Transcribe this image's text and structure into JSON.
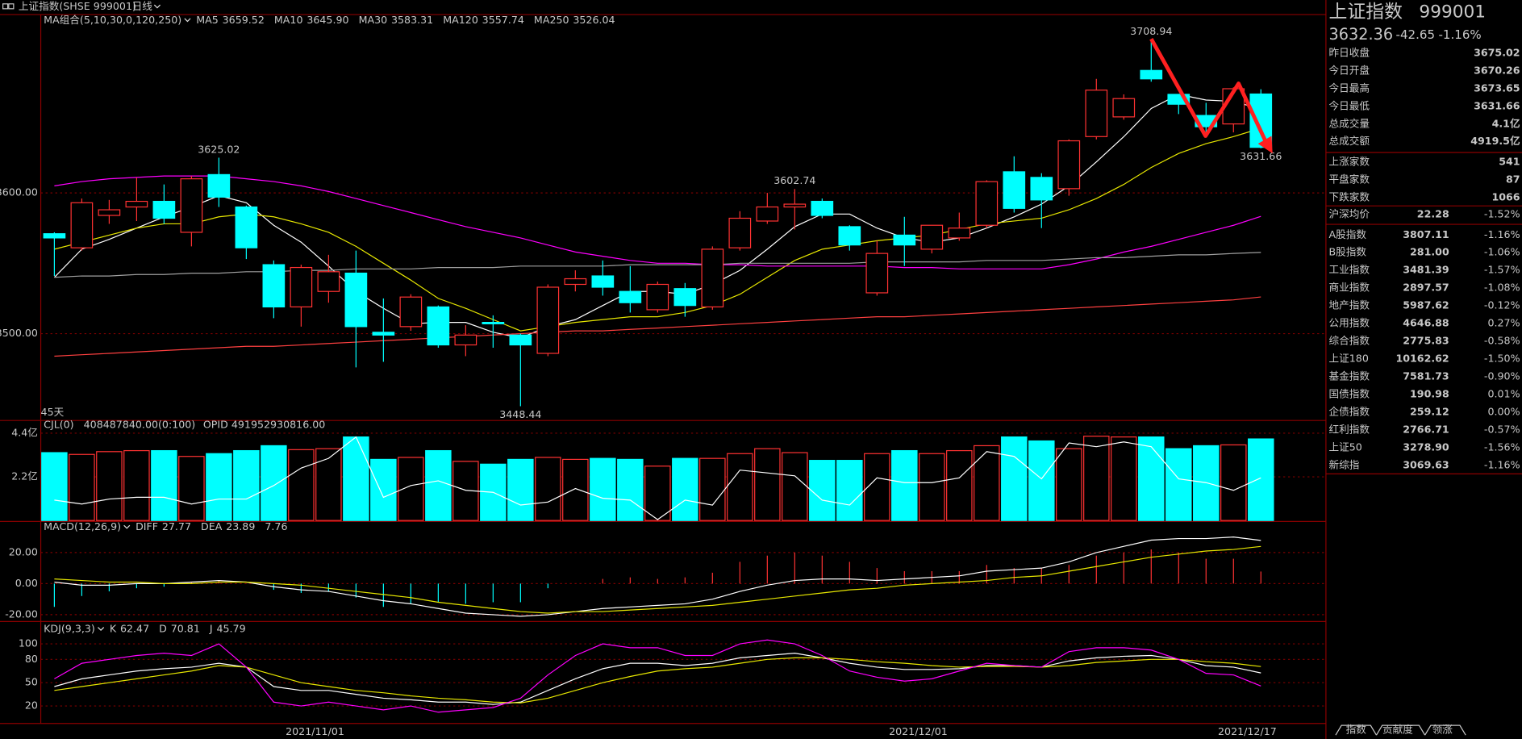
{
  "header": {
    "title": "上证指数(SHSE 999001)",
    "period": "日线"
  },
  "chart_data": [
    {
      "type": "candlestick",
      "legend_title": "MA组合(5,10,30,0,120,250)",
      "period_label": "45天",
      "categories": [
        null,
        null,
        null,
        null,
        null,
        null,
        null,
        null,
        null,
        null,
        "2021/11/01",
        null,
        null,
        null,
        null,
        null,
        null,
        null,
        null,
        null,
        null,
        null,
        null,
        null,
        null,
        null,
        null,
        null,
        null,
        null,
        null,
        null,
        "2021/12/01",
        null,
        null,
        null,
        null,
        null,
        null,
        null,
        null,
        null,
        null,
        null,
        "2021/12/17"
      ],
      "open": [
        3571,
        3561,
        3584,
        3590,
        3594,
        3572,
        3613,
        3590,
        3549,
        3519,
        3530,
        3543,
        3501,
        3505,
        3519,
        3492,
        3508,
        3499,
        3486,
        3535,
        3541,
        3530,
        3517,
        3532,
        3519,
        3561,
        3580,
        3590,
        3594,
        3576,
        3529,
        3570,
        3560,
        3568,
        3577,
        3615,
        3611,
        3603,
        3640,
        3654,
        3687,
        3670,
        3655,
        3649,
        3670.26
      ],
      "high": [
        3572,
        3596,
        3595,
        3611,
        3606,
        3612,
        3625.02,
        3591,
        3552,
        3549,
        3556,
        3559,
        3525,
        3528,
        3520,
        3506,
        3513,
        3500,
        3535,
        3545,
        3552,
        3548,
        3537,
        3536,
        3562,
        3587,
        3600,
        3602.74,
        3596,
        3577,
        3566,
        3583,
        3577,
        3586,
        3609,
        3626,
        3614,
        3638,
        3681,
        3670,
        3708.94,
        3670,
        3664,
        3675,
        3673.65
      ],
      "low": [
        3541,
        3559,
        3578,
        3580,
        3578,
        3562,
        3590,
        3553,
        3511,
        3505,
        3522,
        3476,
        3480,
        3502,
        3490,
        3484,
        3490,
        3448.44,
        3484,
        3530,
        3527,
        3515,
        3515,
        3512,
        3517,
        3559,
        3578,
        3574,
        3582,
        3559,
        3527,
        3548,
        3557,
        3566,
        3575,
        3586,
        3575,
        3598,
        3638,
        3652,
        3679,
        3656,
        3643,
        3643,
        3631.66
      ],
      "close": [
        3568,
        3593,
        3588,
        3594,
        3582,
        3610,
        3597,
        3561,
        3519,
        3547,
        3544,
        3505,
        3499,
        3526,
        3492,
        3499,
        3507,
        3492,
        3533,
        3539,
        3533,
        3522,
        3535,
        3520,
        3560,
        3582,
        3590,
        3592,
        3584,
        3563,
        3557,
        3563,
        3577,
        3575,
        3608,
        3589,
        3595,
        3637,
        3673,
        3667,
        3681,
        3663,
        3647,
        3674,
        3632.36
      ],
      "up_color": "#ff3232",
      "down_color": "#00ffff",
      "ylim": [
        3439,
        3726
      ],
      "yticks": [
        {
          "value": 3500,
          "label": "3500.00"
        },
        {
          "value": 3600,
          "label": "3600.00"
        }
      ],
      "grid": true,
      "series": [
        {
          "name": "MA5",
          "color": "#ffffff",
          "values": [
            3540,
            3560,
            3567,
            3575,
            3583,
            3590,
            3598,
            3593,
            3577,
            3565,
            3548,
            3530,
            3518,
            3507,
            3508,
            3508,
            3501,
            3497,
            3505,
            3510,
            3520,
            3530,
            3530,
            3528,
            3535,
            3545,
            3560,
            3576,
            3585,
            3585,
            3575,
            3568,
            3565,
            3568,
            3575,
            3583,
            3592,
            3605,
            3622,
            3640,
            3660,
            3670,
            3666,
            3665,
            3659.52
          ]
        },
        {
          "name": "MA10",
          "color": "#e6e600",
          "values": [
            3560,
            3565,
            3570,
            3575,
            3578,
            3578,
            3583,
            3585,
            3583,
            3578,
            3572,
            3562,
            3550,
            3538,
            3525,
            3518,
            3510,
            3502,
            3505,
            3508,
            3510,
            3512,
            3512,
            3515,
            3520,
            3528,
            3540,
            3552,
            3560,
            3563,
            3566,
            3568,
            3570,
            3574,
            3578,
            3580,
            3582,
            3588,
            3596,
            3606,
            3618,
            3628,
            3635,
            3640,
            3645.9
          ],
          "value_labels": [
            null,
            null,
            null,
            null,
            null,
            null,
            null,
            null,
            null,
            null,
            null,
            null,
            null,
            null,
            null,
            null,
            null,
            null,
            null,
            null,
            null,
            null,
            null,
            null,
            null,
            null,
            null,
            null,
            null,
            null,
            null,
            null,
            null,
            null,
            null,
            null,
            null,
            null,
            null,
            null,
            null,
            null,
            null,
            null,
            "3645.90"
          ]
        },
        {
          "name": "MA30",
          "color": "#ff00ff",
          "values": [
            3605,
            3608,
            3610,
            3611,
            3612,
            3612,
            3612,
            3610,
            3608,
            3605,
            3601,
            3596,
            3591,
            3586,
            3581,
            3576,
            3572,
            3568,
            3563,
            3558,
            3555,
            3552,
            3550,
            3550,
            3549,
            3549,
            3548,
            3548,
            3548,
            3548,
            3548,
            3547,
            3547,
            3546,
            3546,
            3546,
            3546,
            3549,
            3553,
            3558,
            3562,
            3567,
            3572,
            3577,
            3583.31
          ]
        },
        {
          "name": "MA120",
          "color": "#a0a0a0",
          "values": [
            3540,
            3541,
            3541,
            3542,
            3542,
            3543,
            3543,
            3544,
            3544,
            3545,
            3545,
            3546,
            3546,
            3546,
            3547,
            3547,
            3547,
            3548,
            3548,
            3548,
            3548,
            3549,
            3549,
            3549,
            3549,
            3550,
            3550,
            3550,
            3550,
            3550,
            3551,
            3551,
            3551,
            3551,
            3552,
            3552,
            3552,
            3553,
            3554,
            3554,
            3555,
            3556,
            3556,
            3557,
            3557.74
          ]
        },
        {
          "name": "MA250",
          "color": "#ff4040",
          "values": [
            3484,
            3485,
            3486,
            3487,
            3488,
            3489,
            3490,
            3491,
            3491,
            3492,
            3493,
            3494,
            3495,
            3496,
            3497,
            3498,
            3499,
            3500,
            3501,
            3502,
            3502,
            3503,
            3504,
            3505,
            3506,
            3507,
            3508,
            3509,
            3510,
            3511,
            3512,
            3512,
            3513,
            3514,
            3515,
            3516,
            3517,
            3518,
            3519,
            3520,
            3521,
            3522,
            3523,
            3524,
            3526.04
          ]
        }
      ]
    },
    {
      "type": "bar",
      "title": "CJL(0)",
      "stats": [
        "408487840.00(0:100)",
        "OPID 491952930816.00"
      ],
      "ylim": [
        0,
        5.04
      ],
      "yticks": [
        {
          "value": 2.2,
          "label": "2.2亿"
        },
        {
          "value": 4.4,
          "label": "4.4亿"
        }
      ],
      "grid": true,
      "series": [
        {
          "color": "#00ffff",
          "values": [
            3.42,
            3.33,
            3.47,
            3.52,
            3.52,
            3.23,
            3.37,
            3.52,
            3.77,
            3.57,
            3.62,
            4.21,
            3.08,
            3.18,
            3.52,
            2.98,
            2.84,
            3.08,
            3.18,
            3.08,
            3.13,
            3.08,
            2.74,
            3.13,
            3.13,
            3.37,
            3.62,
            3.42,
            3.03,
            3.03,
            3.37,
            3.52,
            3.37,
            3.52,
            3.77,
            4.21,
            4.01,
            3.62,
            4.25,
            4.21,
            4.21,
            3.62,
            3.77,
            3.81,
            4.11
          ]
        },
        {
          "color": "#ffffff",
          "values": [
            1.03,
            0.83,
            1.08,
            1.17,
            1.17,
            0.83,
            1.08,
            1.08,
            1.76,
            2.64,
            3.13,
            4.21,
            1.17,
            1.76,
            2,
            1.52,
            1.42,
            0.78,
            0.93,
            1.61,
            1.12,
            1.03,
            0.05,
            1.03,
            0.78,
            2.54,
            2.4,
            2.25,
            1.03,
            0.78,
            2.15,
            1.91,
            1.91,
            2.15,
            3.47,
            3.23,
            2.1,
            3.91,
            3.72,
            3.96,
            3.72,
            2.1,
            1.91,
            1.52,
            2.15
          ]
        }
      ]
    },
    {
      "type": "macd",
      "title": "MACD(12,26,9)",
      "ylim": [
        -24.4,
        38.1
      ],
      "yticks": [
        {
          "value": -20,
          "label": "-20.00"
        },
        {
          "value": 0,
          "label": "0.00"
        },
        {
          "value": 20,
          "label": "20.00"
        }
      ],
      "grid": true,
      "series": [
        {
          "name": "DIFF",
          "color": "#ffffff",
          "values": [
            1,
            -1,
            -1,
            0,
            0,
            1,
            2,
            1,
            -2,
            -4,
            -5,
            -8,
            -11,
            -13,
            -16,
            -19,
            -20,
            -21,
            -20,
            -18,
            -16,
            -15,
            -14,
            -13,
            -10,
            -5,
            -1,
            2,
            3,
            3,
            2,
            3,
            4,
            5,
            8,
            9,
            10,
            14,
            20,
            24,
            28,
            29,
            29,
            30,
            27.77
          ]
        },
        {
          "name": "DEA",
          "color": "#e6e600",
          "values": [
            3,
            2,
            1,
            1,
            0,
            0,
            1,
            1,
            0,
            -1,
            -3,
            -5,
            -7,
            -9,
            -12,
            -14,
            -16,
            -18,
            -19,
            -18,
            -18,
            -17,
            -16,
            -15,
            -14,
            -12,
            -10,
            -8,
            -6,
            -4,
            -3,
            -1,
            0,
            1,
            2,
            4,
            5,
            8,
            11,
            14,
            17,
            19,
            21,
            22,
            23.89
          ]
        },
        {
          "color": "#00ffff",
          "values": [
            -15,
            -8,
            -5,
            -3,
            -2,
            1,
            2,
            0,
            -4,
            -6,
            -5,
            -9,
            -15,
            -13,
            -12,
            -13,
            -12,
            -12,
            -3,
            0,
            3,
            4,
            3,
            4,
            7,
            14,
            18,
            20,
            18,
            14,
            10,
            8,
            8,
            8,
            12,
            10,
            10,
            12,
            18,
            20,
            22,
            20,
            16,
            16,
            7.76
          ]
        }
      ]
    },
    {
      "type": "line",
      "title": "KDJ(9,3,3)",
      "ylim": [
        -2.5,
        125
      ],
      "yticks": [
        20,
        50,
        80,
        100
      ],
      "grid": true,
      "series": [
        {
          "name": "K",
          "color": "#ffffff",
          "values": [
            45,
            55,
            60,
            65,
            68,
            70,
            75,
            70,
            45,
            40,
            40,
            35,
            30,
            28,
            25,
            25,
            22,
            25,
            40,
            55,
            68,
            75,
            75,
            72,
            75,
            82,
            85,
            88,
            82,
            75,
            70,
            67,
            67,
            68,
            72,
            72,
            70,
            78,
            82,
            84,
            85,
            80,
            72,
            70,
            62.47
          ]
        },
        {
          "name": "D",
          "color": "#e6e600",
          "values": [
            40,
            45,
            50,
            55,
            60,
            65,
            72,
            70,
            60,
            50,
            45,
            40,
            37,
            33,
            30,
            28,
            25,
            24,
            30,
            40,
            50,
            58,
            65,
            68,
            70,
            75,
            80,
            82,
            82,
            80,
            77,
            75,
            72,
            70,
            71,
            71,
            70,
            72,
            76,
            78,
            80,
            80,
            77,
            75,
            70.81
          ]
        },
        {
          "name": "J",
          "color": "#ff00ff",
          "values": [
            55,
            75,
            80,
            85,
            88,
            85,
            100,
            70,
            25,
            20,
            25,
            20,
            15,
            20,
            12,
            15,
            18,
            30,
            60,
            85,
            100,
            95,
            95,
            85,
            85,
            100,
            105,
            100,
            85,
            65,
            57,
            52,
            55,
            65,
            75,
            72,
            70,
            90,
            95,
            95,
            92,
            80,
            62,
            60,
            45.79
          ]
        }
      ]
    }
  ],
  "quote": {
    "name": "上证指数",
    "code": "999001",
    "price": "3632.36",
    "change": "-42.65",
    "change_pct": "-1.16%",
    "summary": [
      {
        "label": "昨日收盘",
        "value": "3675.02",
        "color": "#ffffff"
      },
      {
        "label": "今日开盘",
        "value": "3670.26",
        "color": "#00e600"
      },
      {
        "label": "今日最高",
        "value": "3673.65",
        "color": "#00e600"
      },
      {
        "label": "今日最低",
        "value": "3631.66",
        "color": "#00e600"
      },
      {
        "label": "总成交量",
        "value": "4.1亿",
        "color": "#00e600"
      },
      {
        "label": "总成交额",
        "value": "4919.5亿",
        "color": "#00e600"
      }
    ],
    "breadth": [
      {
        "label": "上涨家数",
        "value": "541"
      },
      {
        "label": "平盘家数",
        "value": "87"
      },
      {
        "label": "下跌家数",
        "value": "1066"
      }
    ],
    "average": {
      "label": "沪深均价",
      "value": "22.28",
      "pct": "-1.52%"
    },
    "indices": [
      {
        "label": "A股指数",
        "value": "3807.11",
        "pct": "-1.16%"
      },
      {
        "label": "B股指数",
        "value": "281.00",
        "pct": "-1.06%"
      },
      {
        "label": "工业指数",
        "value": "3481.39",
        "pct": "-1.57%"
      },
      {
        "label": "商业指数",
        "value": "2897.57",
        "pct": "-1.08%"
      },
      {
        "label": "地产指数",
        "value": "5987.62",
        "pct": "-0.12%"
      },
      {
        "label": "公用指数",
        "value": "4646.88",
        "pct": "0.27%"
      },
      {
        "label": "综合指数",
        "value": "2775.83",
        "pct": "-0.58%"
      },
      {
        "label": "上证180",
        "value": "10162.62",
        "pct": "-1.50%"
      },
      {
        "label": "基金指数",
        "value": "7581.73",
        "pct": "-0.90%"
      },
      {
        "label": "国债指数",
        "value": "190.98",
        "pct": "0.01%"
      },
      {
        "label": "企债指数",
        "value": "259.12",
        "pct": "0.00%"
      },
      {
        "label": "红利指数",
        "value": "2766.71",
        "pct": "-0.57%"
      },
      {
        "label": "上证50",
        "value": "3278.90",
        "pct": "-1.56%"
      },
      {
        "label": "新综指",
        "value": "3069.63",
        "pct": "-1.16%"
      }
    ]
  },
  "tabs": [
    "指数",
    "贡献度",
    "领涨"
  ]
}
